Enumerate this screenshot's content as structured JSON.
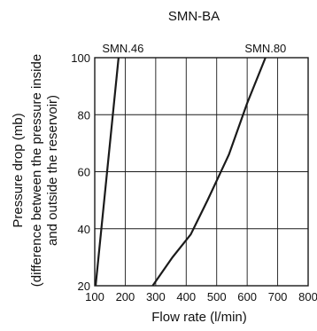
{
  "chart_data": {
    "type": "line",
    "title": "SMN-BA",
    "xlabel": "Flow rate (l/min)",
    "ylabel_lines": [
      "Pressure drop (mb)",
      "(difference between the pressure inside",
      "and outside the reservoir)"
    ],
    "xlim": [
      100,
      800
    ],
    "ylim": [
      20,
      100
    ],
    "x_ticks": [
      100,
      200,
      300,
      400,
      500,
      600,
      700,
      800
    ],
    "y_ticks": [
      20,
      40,
      60,
      80,
      100
    ],
    "grid": true,
    "series": [
      {
        "name": "SMN.46",
        "points": [
          [
            103,
            20
          ],
          [
            178,
            100
          ]
        ]
      },
      {
        "name": "SMN.80",
        "points": [
          [
            290,
            20
          ],
          [
            355,
            30
          ],
          [
            415,
            38
          ],
          [
            470,
            50
          ],
          [
            540,
            66
          ],
          [
            600,
            84
          ],
          [
            660,
            100
          ]
        ]
      }
    ]
  }
}
